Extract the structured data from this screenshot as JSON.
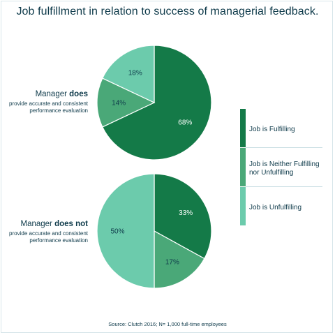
{
  "chart_data": {
    "type": "pie",
    "title": "Job fulfillment in relation to success of managerial feedback.",
    "categories": [
      "Job is Fulfilling",
      "Job is Neither Fulfilling nor Unfulfilling",
      "Job is Unfulfilling"
    ],
    "colors": [
      "#147a48",
      "#4aa878",
      "#6ccbac"
    ],
    "pies": [
      {
        "label_main_prefix": "Manager ",
        "label_main_bold": "does",
        "label_sub": "provide accurate and consistent performance evaluation",
        "values": [
          68,
          14,
          18
        ],
        "value_labels": [
          "68%",
          "14%",
          "18%"
        ]
      },
      {
        "label_main_prefix": "Manager ",
        "label_main_bold": "does not",
        "label_sub": "provide accurate and consistent performance evaluation",
        "values": [
          33,
          17,
          50
        ],
        "value_labels": [
          "33%",
          "17%",
          "50%"
        ]
      }
    ],
    "legend": [
      "Job is Fulfilling",
      "Job is Neither Fulfilling\nnor Unfulfilling",
      "Job is Unfulfilling"
    ],
    "legend_position": "right",
    "source": "Source:  Clutch 2016; N= 1,000 full-time employees"
  }
}
